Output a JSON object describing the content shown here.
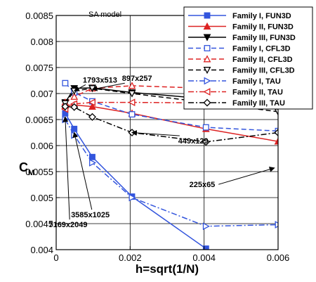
{
  "chart_data": {
    "type": "line",
    "subtitle": "SA model",
    "xlabel": "h=sqrt(1/N)",
    "ylabel": "C",
    "ylabel_sub": "M",
    "xlim": [
      0,
      0.006
    ],
    "ylim": [
      0.004,
      0.0085
    ],
    "x_ticks": [
      0,
      0.002,
      0.004,
      0.006
    ],
    "x_tick_labels": [
      "0",
      "0.002",
      "0.004",
      "0.006"
    ],
    "y_ticks": [
      0.004,
      0.0045,
      0.005,
      0.0055,
      0.006,
      0.0065,
      0.007,
      0.0075,
      0.008,
      0.0085
    ],
    "y_tick_labels": [
      "0.004",
      "0.0045",
      "0.005",
      "0.0055",
      "0.006",
      "0.0065",
      "0.007",
      "0.0075",
      "0.008",
      "0.0085"
    ],
    "grid": true,
    "legend_position": "top-right",
    "series": [
      {
        "name": "Family I, FUN3D",
        "color": "#3355dd",
        "dash": "solid",
        "marker": "square-filled",
        "x": [
          0.000244,
          0.000488,
          0.000977,
          0.00205,
          0.00405
        ],
        "y": [
          0.00662,
          0.00632,
          0.00578,
          0.00502,
          0.00402
        ]
      },
      {
        "name": "Family II, FUN3D",
        "color": "#dd2222",
        "dash": "solid",
        "marker": "triangle-filled",
        "x": [
          0.000244,
          0.000488,
          0.000977,
          0.00205,
          0.00405,
          0.006
        ],
        "y": [
          0.00677,
          0.00678,
          0.00675,
          0.00662,
          0.00632,
          0.00608
        ]
      },
      {
        "name": "Family III, FUN3D",
        "color": "#000000",
        "dash": "solid",
        "marker": "triangle-down-filled",
        "x": [
          0.000244,
          0.000488,
          0.000977,
          0.00205,
          0.00405,
          0.006
        ],
        "y": [
          0.00683,
          0.0071,
          0.00711,
          0.00702,
          0.0069,
          0.00675
        ]
      },
      {
        "name": "Family I, CFL3D",
        "color": "#3355dd",
        "dash": "dash",
        "marker": "square-open",
        "x": [
          0.000244,
          0.000488,
          0.000977,
          0.00205,
          0.00405,
          0.006
        ],
        "y": [
          0.0072,
          0.00702,
          0.00685,
          0.0066,
          0.00635,
          0.00628
        ]
      },
      {
        "name": "Family II, CFL3D",
        "color": "#dd2222",
        "dash": "dash",
        "marker": "triangle-open",
        "x": [
          0.000244,
          0.000488,
          0.000977,
          0.00205,
          0.00405,
          0.006
        ],
        "y": [
          0.00683,
          0.00694,
          0.0071,
          0.00715,
          0.0071,
          0.00705
        ]
      },
      {
        "name": "Family III, CFL3D",
        "color": "#000000",
        "dash": "dash",
        "marker": "triangle-down-open",
        "x": [
          0.000244,
          0.000488,
          0.000977,
          0.00205,
          0.00405,
          0.006
        ],
        "y": [
          0.00681,
          0.00705,
          0.0071,
          0.007,
          0.00683,
          0.00665
        ]
      },
      {
        "name": "Family I, TAU",
        "color": "#3355dd",
        "dash": "dashdot",
        "marker": "triangle-right-open",
        "x": [
          0.000244,
          0.000488,
          0.000977,
          0.00205,
          0.00405,
          0.006
        ],
        "y": [
          0.0065,
          0.0062,
          0.00567,
          0.005,
          0.00445,
          0.00448
        ]
      },
      {
        "name": "Family II, TAU",
        "color": "#dd2222",
        "dash": "dashdot",
        "marker": "triangle-left-open",
        "x": [
          0.000244,
          0.000488,
          0.000977,
          0.00205,
          0.00405,
          0.006
        ],
        "y": [
          0.0067,
          0.0068,
          0.00683,
          0.00683,
          0.00682,
          0.00682
        ]
      },
      {
        "name": "Family III, TAU",
        "color": "#000000",
        "dash": "dashdot",
        "marker": "diamond-open",
        "x": [
          0.000244,
          0.000488,
          0.000977,
          0.00205,
          0.00405,
          0.006
        ],
        "y": [
          0.00675,
          0.00674,
          0.00655,
          0.00625,
          0.00607,
          0.00625
        ]
      }
    ],
    "annotations": [
      {
        "text": "1793x513",
        "x": 0.00072,
        "y": 0.00721,
        "arrow_to": [
          0.00049,
          0.00705
        ]
      },
      {
        "text": "897x257",
        "x": 0.00178,
        "y": 0.00724,
        "arrow_to": [
          0.000977,
          0.00708
        ]
      },
      {
        "text": "449x129",
        "x": 0.0033,
        "y": 0.00604,
        "arrow_to": [
          0.00205,
          0.00625
        ]
      },
      {
        "text": "225x65",
        "x": 0.0036,
        "y": 0.0052,
        "arrow_to": [
          0.0059,
          0.00557
        ]
      },
      {
        "text": "3585x1025",
        "x": 0.0004,
        "y": 0.00462,
        "arrow_to": [
          0.000488,
          0.00625
        ]
      },
      {
        "text": "7169x2049",
        "x": -0.0002,
        "y": 0.00443,
        "arrow_to": [
          0.000244,
          0.00655
        ]
      }
    ]
  }
}
